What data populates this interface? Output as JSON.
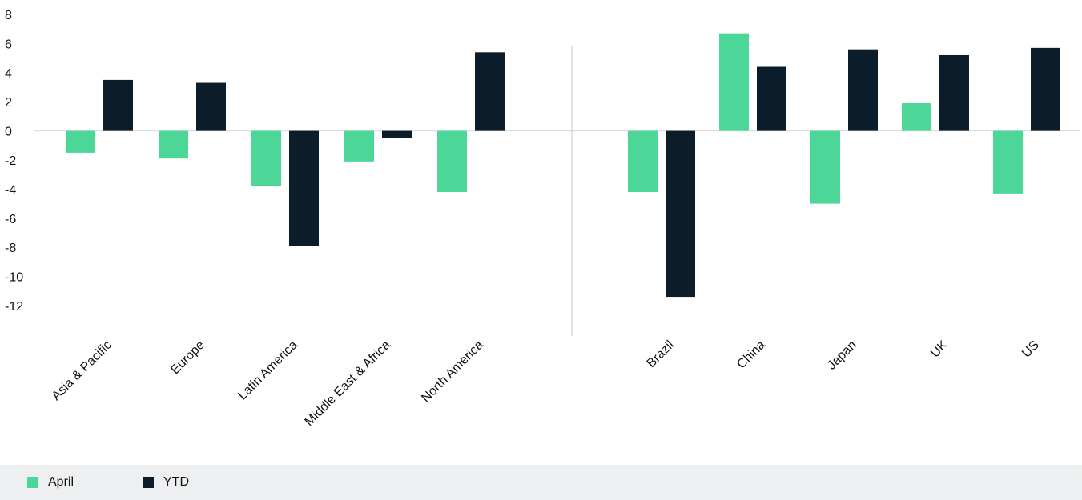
{
  "chart_data": {
    "type": "bar",
    "title": "",
    "xlabel": "",
    "ylabel": "",
    "ylim": [
      -12,
      8
    ],
    "yticks": [
      8,
      6,
      4,
      2,
      0,
      -2,
      -4,
      -6,
      -8,
      -10,
      -12
    ],
    "grid": false,
    "legend_position": "bottom",
    "groups": [
      {
        "categories": [
          "Asia & Pacific",
          "Europe",
          "Latin America",
          "Middle East & Africa",
          "North America"
        ]
      },
      {
        "categories": [
          "Brazil",
          "China",
          "Japan",
          "UK",
          "US"
        ]
      }
    ],
    "categories": [
      "Asia & Pacific",
      "Europe",
      "Latin America",
      "Middle East & Africa",
      "North America",
      "Brazil",
      "China",
      "Japan",
      "UK",
      "US"
    ],
    "series": [
      {
        "name": "April",
        "color": "#4cd697",
        "values": [
          -1.5,
          -1.9,
          -3.8,
          -2.1,
          -4.2,
          -4.2,
          6.7,
          -5.0,
          1.9,
          -4.3
        ]
      },
      {
        "name": "YTD",
        "color": "#0b1c2b",
        "values": [
          3.5,
          3.3,
          -7.9,
          -0.5,
          5.4,
          -11.4,
          4.4,
          5.6,
          5.2,
          5.7
        ]
      }
    ]
  },
  "legend": {
    "items": [
      {
        "label": "April",
        "color": "#4cd697"
      },
      {
        "label": "YTD",
        "color": "#0b1c2b"
      }
    ]
  }
}
